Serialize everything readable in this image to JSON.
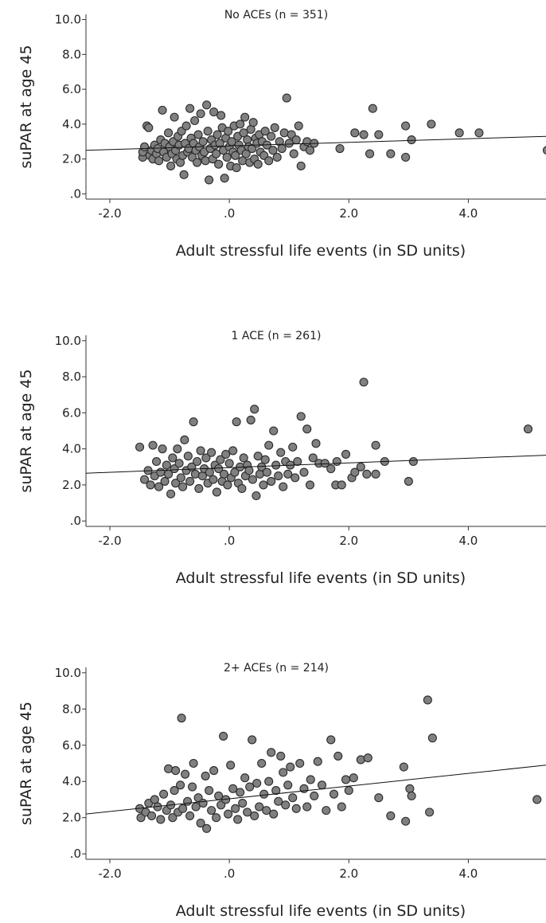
{
  "chart_data": [
    {
      "type": "scatter",
      "title": "No ACEs (n = 351)",
      "xlabel": "Adult stressful life events (in SD units)",
      "ylabel": "suPAR at age 45",
      "xlim": [
        -2.4,
        5.3
      ],
      "ylim": [
        -0.3,
        10.3
      ],
      "xticks": [
        "-2.0",
        ".0",
        "2.0",
        "4.0"
      ],
      "xtick_values": [
        -2,
        0,
        2,
        4
      ],
      "yticks": [
        ".0",
        "2.0",
        "4.0",
        "6.0",
        "8.0",
        "10.0"
      ],
      "ytick_values": [
        0,
        2,
        4,
        6,
        8,
        10
      ],
      "fit_line": {
        "x": [
          -2.4,
          5.3
        ],
        "y": [
          2.5,
          3.3
        ]
      },
      "points": [
        [
          -1.45,
          2.1
        ],
        [
          -1.45,
          2.4
        ],
        [
          -1.42,
          2.7
        ],
        [
          -1.38,
          3.9
        ],
        [
          -1.35,
          3.8
        ],
        [
          -1.33,
          2.2
        ],
        [
          -1.3,
          2.5
        ],
        [
          -1.28,
          2.0
        ],
        [
          -1.25,
          2.8
        ],
        [
          -1.22,
          2.3
        ],
        [
          -1.2,
          2.6
        ],
        [
          -1.18,
          1.9
        ],
        [
          -1.15,
          3.1
        ],
        [
          -1.12,
          4.8
        ],
        [
          -1.1,
          2.4
        ],
        [
          -1.08,
          2.9
        ],
        [
          -1.05,
          2.1
        ],
        [
          -1.02,
          3.5
        ],
        [
          -1.0,
          2.7
        ],
        [
          -0.98,
          1.6
        ],
        [
          -0.96,
          2.3
        ],
        [
          -0.94,
          3.0
        ],
        [
          -0.92,
          4.4
        ],
        [
          -0.9,
          2.5
        ],
        [
          -0.88,
          2.0
        ],
        [
          -0.86,
          3.3
        ],
        [
          -0.84,
          2.8
        ],
        [
          -0.82,
          1.8
        ],
        [
          -0.8,
          3.6
        ],
        [
          -0.78,
          2.2
        ],
        [
          -0.76,
          1.1
        ],
        [
          -0.74,
          2.9
        ],
        [
          -0.72,
          3.9
        ],
        [
          -0.7,
          2.4
        ],
        [
          -0.68,
          2.6
        ],
        [
          -0.66,
          4.9
        ],
        [
          -0.64,
          3.2
        ],
        [
          -0.62,
          2.1
        ],
        [
          -0.6,
          2.9
        ],
        [
          -0.58,
          4.2
        ],
        [
          -0.56,
          2.5
        ],
        [
          -0.54,
          1.8
        ],
        [
          -0.52,
          3.4
        ],
        [
          -0.5,
          2.7
        ],
        [
          -0.48,
          4.6
        ],
        [
          -0.46,
          2.2
        ],
        [
          -0.44,
          3.0
        ],
        [
          -0.42,
          2.4
        ],
        [
          -0.4,
          1.9
        ],
        [
          -0.38,
          5.1
        ],
        [
          -0.36,
          3.6
        ],
        [
          -0.34,
          0.8
        ],
        [
          -0.32,
          2.6
        ],
        [
          -0.3,
          3.1
        ],
        [
          -0.28,
          2.0
        ],
        [
          -0.26,
          4.7
        ],
        [
          -0.24,
          2.8
        ],
        [
          -0.22,
          2.3
        ],
        [
          -0.2,
          3.4
        ],
        [
          -0.18,
          1.7
        ],
        [
          -0.16,
          2.9
        ],
        [
          -0.14,
          4.5
        ],
        [
          -0.12,
          3.8
        ],
        [
          -0.1,
          2.5
        ],
        [
          -0.08,
          0.9
        ],
        [
          -0.06,
          3.2
        ],
        [
          -0.04,
          2.1
        ],
        [
          -0.02,
          3.6
        ],
        [
          0.0,
          2.7
        ],
        [
          0.02,
          1.6
        ],
        [
          0.04,
          3.0
        ],
        [
          0.06,
          2.4
        ],
        [
          0.08,
          3.9
        ],
        [
          0.1,
          2.2
        ],
        [
          0.12,
          1.5
        ],
        [
          0.14,
          3.3
        ],
        [
          0.16,
          2.8
        ],
        [
          0.18,
          4.0
        ],
        [
          0.2,
          2.5
        ],
        [
          0.22,
          1.9
        ],
        [
          0.24,
          3.5
        ],
        [
          0.26,
          4.4
        ],
        [
          0.28,
          2.3
        ],
        [
          0.3,
          3.1
        ],
        [
          0.32,
          2.7
        ],
        [
          0.34,
          1.8
        ],
        [
          0.36,
          3.7
        ],
        [
          0.38,
          2.6
        ],
        [
          0.4,
          4.1
        ],
        [
          0.42,
          2.0
        ],
        [
          0.44,
          3.2
        ],
        [
          0.46,
          2.9
        ],
        [
          0.48,
          1.7
        ],
        [
          0.5,
          3.4
        ],
        [
          0.52,
          2.4
        ],
        [
          0.55,
          3.0
        ],
        [
          0.58,
          2.2
        ],
        [
          0.6,
          3.6
        ],
        [
          0.63,
          2.8
        ],
        [
          0.66,
          1.9
        ],
        [
          0.7,
          3.3
        ],
        [
          0.73,
          2.5
        ],
        [
          0.76,
          3.8
        ],
        [
          0.8,
          2.1
        ],
        [
          0.84,
          3.0
        ],
        [
          0.88,
          2.6
        ],
        [
          0.92,
          3.5
        ],
        [
          0.96,
          5.5
        ],
        [
          1.0,
          2.9
        ],
        [
          1.04,
          3.4
        ],
        [
          1.08,
          2.3
        ],
        [
          1.12,
          3.1
        ],
        [
          1.16,
          3.9
        ],
        [
          1.2,
          1.6
        ],
        [
          1.25,
          2.7
        ],
        [
          1.3,
          3.0
        ],
        [
          1.35,
          2.5
        ],
        [
          1.42,
          2.9
        ],
        [
          1.85,
          2.6
        ],
        [
          2.1,
          3.5
        ],
        [
          2.25,
          3.4
        ],
        [
          2.35,
          2.3
        ],
        [
          2.4,
          4.9
        ],
        [
          2.5,
          3.4
        ],
        [
          2.7,
          2.3
        ],
        [
          2.95,
          2.1
        ],
        [
          2.95,
          3.9
        ],
        [
          3.05,
          3.1
        ],
        [
          3.38,
          4.0
        ],
        [
          3.85,
          3.5
        ],
        [
          4.18,
          3.5
        ],
        [
          5.32,
          2.5
        ]
      ]
    },
    {
      "type": "scatter",
      "title": "1 ACE (n = 261)",
      "xlabel": "Adult stressful life events (in SD units)",
      "ylabel": "suPAR at age 45",
      "xlim": [
        -2.4,
        5.3
      ],
      "ylim": [
        -0.3,
        10.3
      ],
      "xticks": [
        "-2.0",
        ".0",
        "2.0",
        "4.0"
      ],
      "xtick_values": [
        -2,
        0,
        2,
        4
      ],
      "yticks": [
        ".0",
        "2.0",
        "4.0",
        "6.0",
        "8.0",
        "10.0"
      ],
      "ytick_values": [
        0,
        2,
        4,
        6,
        8,
        10
      ],
      "fit_line": {
        "x": [
          -2.4,
          5.3
        ],
        "y": [
          2.65,
          3.65
        ]
      },
      "points": [
        [
          -1.5,
          4.1
        ],
        [
          -1.42,
          2.3
        ],
        [
          -1.36,
          2.8
        ],
        [
          -1.32,
          2.0
        ],
        [
          -1.28,
          4.2
        ],
        [
          -1.25,
          2.5
        ],
        [
          -1.22,
          3.3
        ],
        [
          -1.18,
          1.9
        ],
        [
          -1.15,
          2.7
        ],
        [
          -1.12,
          4.0
        ],
        [
          -1.08,
          2.2
        ],
        [
          -1.05,
          3.1
        ],
        [
          -1.02,
          2.6
        ],
        [
          -0.98,
          1.5
        ],
        [
          -0.95,
          3.5
        ],
        [
          -0.92,
          2.9
        ],
        [
          -0.9,
          2.1
        ],
        [
          -0.87,
          4.0
        ],
        [
          -0.84,
          3.2
        ],
        [
          -0.81,
          2.4
        ],
        [
          -0.78,
          1.9
        ],
        [
          -0.75,
          4.5
        ],
        [
          -0.72,
          2.8
        ],
        [
          -0.69,
          3.6
        ],
        [
          -0.66,
          2.2
        ],
        [
          -0.63,
          3.0
        ],
        [
          -0.6,
          5.5
        ],
        [
          -0.57,
          2.6
        ],
        [
          -0.54,
          3.3
        ],
        [
          -0.51,
          1.8
        ],
        [
          -0.48,
          3.9
        ],
        [
          -0.45,
          2.5
        ],
        [
          -0.42,
          2.9
        ],
        [
          -0.39,
          3.5
        ],
        [
          -0.36,
          2.1
        ],
        [
          -0.33,
          2.7
        ],
        [
          -0.3,
          3.8
        ],
        [
          -0.27,
          2.3
        ],
        [
          -0.24,
          3.1
        ],
        [
          -0.21,
          1.6
        ],
        [
          -0.18,
          2.9
        ],
        [
          -0.15,
          3.4
        ],
        [
          -0.12,
          2.2
        ],
        [
          -0.09,
          2.6
        ],
        [
          -0.06,
          3.7
        ],
        [
          -0.03,
          2.0
        ],
        [
          0.0,
          3.2
        ],
        [
          0.03,
          2.4
        ],
        [
          0.06,
          3.9
        ],
        [
          0.09,
          2.7
        ],
        [
          0.12,
          5.5
        ],
        [
          0.15,
          2.1
        ],
        [
          0.18,
          3.0
        ],
        [
          0.21,
          1.8
        ],
        [
          0.24,
          3.5
        ],
        [
          0.27,
          2.5
        ],
        [
          0.3,
          3.1
        ],
        [
          0.33,
          2.8
        ],
        [
          0.36,
          5.6
        ],
        [
          0.39,
          2.3
        ],
        [
          0.42,
          6.2
        ],
        [
          0.45,
          1.4
        ],
        [
          0.48,
          3.6
        ],
        [
          0.51,
          2.6
        ],
        [
          0.54,
          3.0
        ],
        [
          0.57,
          2.0
        ],
        [
          0.6,
          3.4
        ],
        [
          0.63,
          2.7
        ],
        [
          0.66,
          4.2
        ],
        [
          0.7,
          2.2
        ],
        [
          0.74,
          5.0
        ],
        [
          0.78,
          3.1
        ],
        [
          0.82,
          2.5
        ],
        [
          0.86,
          3.8
        ],
        [
          0.9,
          1.9
        ],
        [
          0.94,
          3.3
        ],
        [
          0.98,
          2.6
        ],
        [
          1.02,
          3.1
        ],
        [
          1.06,
          4.1
        ],
        [
          1.1,
          2.4
        ],
        [
          1.14,
          3.3
        ],
        [
          1.2,
          5.8
        ],
        [
          1.25,
          2.7
        ],
        [
          1.3,
          5.1
        ],
        [
          1.35,
          2.0
        ],
        [
          1.4,
          3.5
        ],
        [
          1.45,
          4.3
        ],
        [
          1.5,
          3.2
        ],
        [
          1.6,
          3.2
        ],
        [
          1.7,
          2.9
        ],
        [
          1.78,
          2.0
        ],
        [
          1.8,
          3.3
        ],
        [
          1.88,
          2.0
        ],
        [
          1.95,
          3.7
        ],
        [
          2.05,
          2.4
        ],
        [
          2.1,
          2.7
        ],
        [
          2.2,
          3.0
        ],
        [
          2.25,
          7.7
        ],
        [
          2.3,
          2.6
        ],
        [
          2.45,
          4.2
        ],
        [
          2.45,
          2.6
        ],
        [
          2.6,
          3.3
        ],
        [
          3.0,
          2.2
        ],
        [
          3.08,
          3.3
        ],
        [
          5.0,
          5.1
        ]
      ]
    },
    {
      "type": "scatter",
      "title": "2+ ACEs (n = 214)",
      "xlabel": "Adult stressful life events (in SD units)",
      "ylabel": "suPAR at age 45",
      "xlim": [
        -2.4,
        5.3
      ],
      "ylim": [
        -0.3,
        10.3
      ],
      "xticks": [
        "-2.0",
        ".0",
        "2.0",
        "4.0"
      ],
      "xtick_values": [
        -2,
        0,
        2,
        4
      ],
      "yticks": [
        ".0",
        "2.0",
        "4.0",
        "6.0",
        "8.0",
        "10.0"
      ],
      "ytick_values": [
        0,
        2,
        4,
        6,
        8,
        10
      ],
      "fit_line": {
        "x": [
          -2.4,
          5.3
        ],
        "y": [
          2.2,
          4.9
        ]
      },
      "points": [
        [
          -1.5,
          2.5
        ],
        [
          -1.48,
          2.0
        ],
        [
          -1.4,
          2.3
        ],
        [
          -1.35,
          2.8
        ],
        [
          -1.3,
          2.1
        ],
        [
          -1.25,
          3.0
        ],
        [
          -1.2,
          2.6
        ],
        [
          -1.15,
          1.9
        ],
        [
          -1.1,
          3.3
        ],
        [
          -1.05,
          2.4
        ],
        [
          -1.02,
          4.7
        ],
        [
          -0.98,
          2.7
        ],
        [
          -0.95,
          2.0
        ],
        [
          -0.92,
          3.5
        ],
        [
          -0.9,
          4.6
        ],
        [
          -0.86,
          2.3
        ],
        [
          -0.82,
          3.8
        ],
        [
          -0.8,
          7.5
        ],
        [
          -0.78,
          2.5
        ],
        [
          -0.74,
          4.4
        ],
        [
          -0.7,
          2.9
        ],
        [
          -0.66,
          2.1
        ],
        [
          -0.62,
          3.7
        ],
        [
          -0.6,
          5.0
        ],
        [
          -0.56,
          2.6
        ],
        [
          -0.52,
          3.1
        ],
        [
          -0.48,
          1.7
        ],
        [
          -0.44,
          2.8
        ],
        [
          -0.4,
          4.3
        ],
        [
          -0.38,
          1.4
        ],
        [
          -0.34,
          3.5
        ],
        [
          -0.3,
          2.4
        ],
        [
          -0.26,
          4.6
        ],
        [
          -0.22,
          2.0
        ],
        [
          -0.18,
          3.2
        ],
        [
          -0.14,
          2.7
        ],
        [
          -0.1,
          6.5
        ],
        [
          -0.06,
          3.0
        ],
        [
          -0.02,
          2.2
        ],
        [
          0.02,
          4.9
        ],
        [
          0.06,
          3.6
        ],
        [
          0.1,
          2.5
        ],
        [
          0.14,
          1.9
        ],
        [
          0.18,
          3.4
        ],
        [
          0.22,
          2.8
        ],
        [
          0.26,
          4.2
        ],
        [
          0.3,
          2.3
        ],
        [
          0.34,
          3.7
        ],
        [
          0.38,
          6.3
        ],
        [
          0.42,
          2.1
        ],
        [
          0.46,
          3.9
        ],
        [
          0.5,
          2.6
        ],
        [
          0.54,
          5.0
        ],
        [
          0.58,
          3.3
        ],
        [
          0.62,
          2.4
        ],
        [
          0.66,
          4.0
        ],
        [
          0.7,
          5.6
        ],
        [
          0.74,
          2.2
        ],
        [
          0.78,
          3.5
        ],
        [
          0.82,
          2.9
        ],
        [
          0.86,
          5.4
        ],
        [
          0.9,
          4.5
        ],
        [
          0.94,
          2.7
        ],
        [
          0.98,
          3.8
        ],
        [
          1.02,
          4.8
        ],
        [
          1.06,
          3.1
        ],
        [
          1.12,
          2.5
        ],
        [
          1.18,
          5.0
        ],
        [
          1.25,
          3.6
        ],
        [
          1.3,
          2.6
        ],
        [
          1.36,
          4.1
        ],
        [
          1.42,
          3.2
        ],
        [
          1.48,
          5.1
        ],
        [
          1.55,
          3.8
        ],
        [
          1.62,
          2.4
        ],
        [
          1.7,
          6.3
        ],
        [
          1.75,
          3.3
        ],
        [
          1.82,
          5.4
        ],
        [
          1.88,
          2.6
        ],
        [
          1.95,
          4.1
        ],
        [
          2.0,
          3.5
        ],
        [
          2.08,
          4.2
        ],
        [
          2.2,
          5.2
        ],
        [
          2.32,
          5.3
        ],
        [
          2.5,
          3.1
        ],
        [
          2.7,
          2.1
        ],
        [
          2.92,
          4.8
        ],
        [
          2.95,
          1.8
        ],
        [
          3.02,
          3.6
        ],
        [
          3.05,
          3.2
        ],
        [
          3.32,
          8.5
        ],
        [
          3.35,
          2.3
        ],
        [
          3.4,
          6.4
        ],
        [
          5.15,
          3.0
        ]
      ]
    }
  ]
}
